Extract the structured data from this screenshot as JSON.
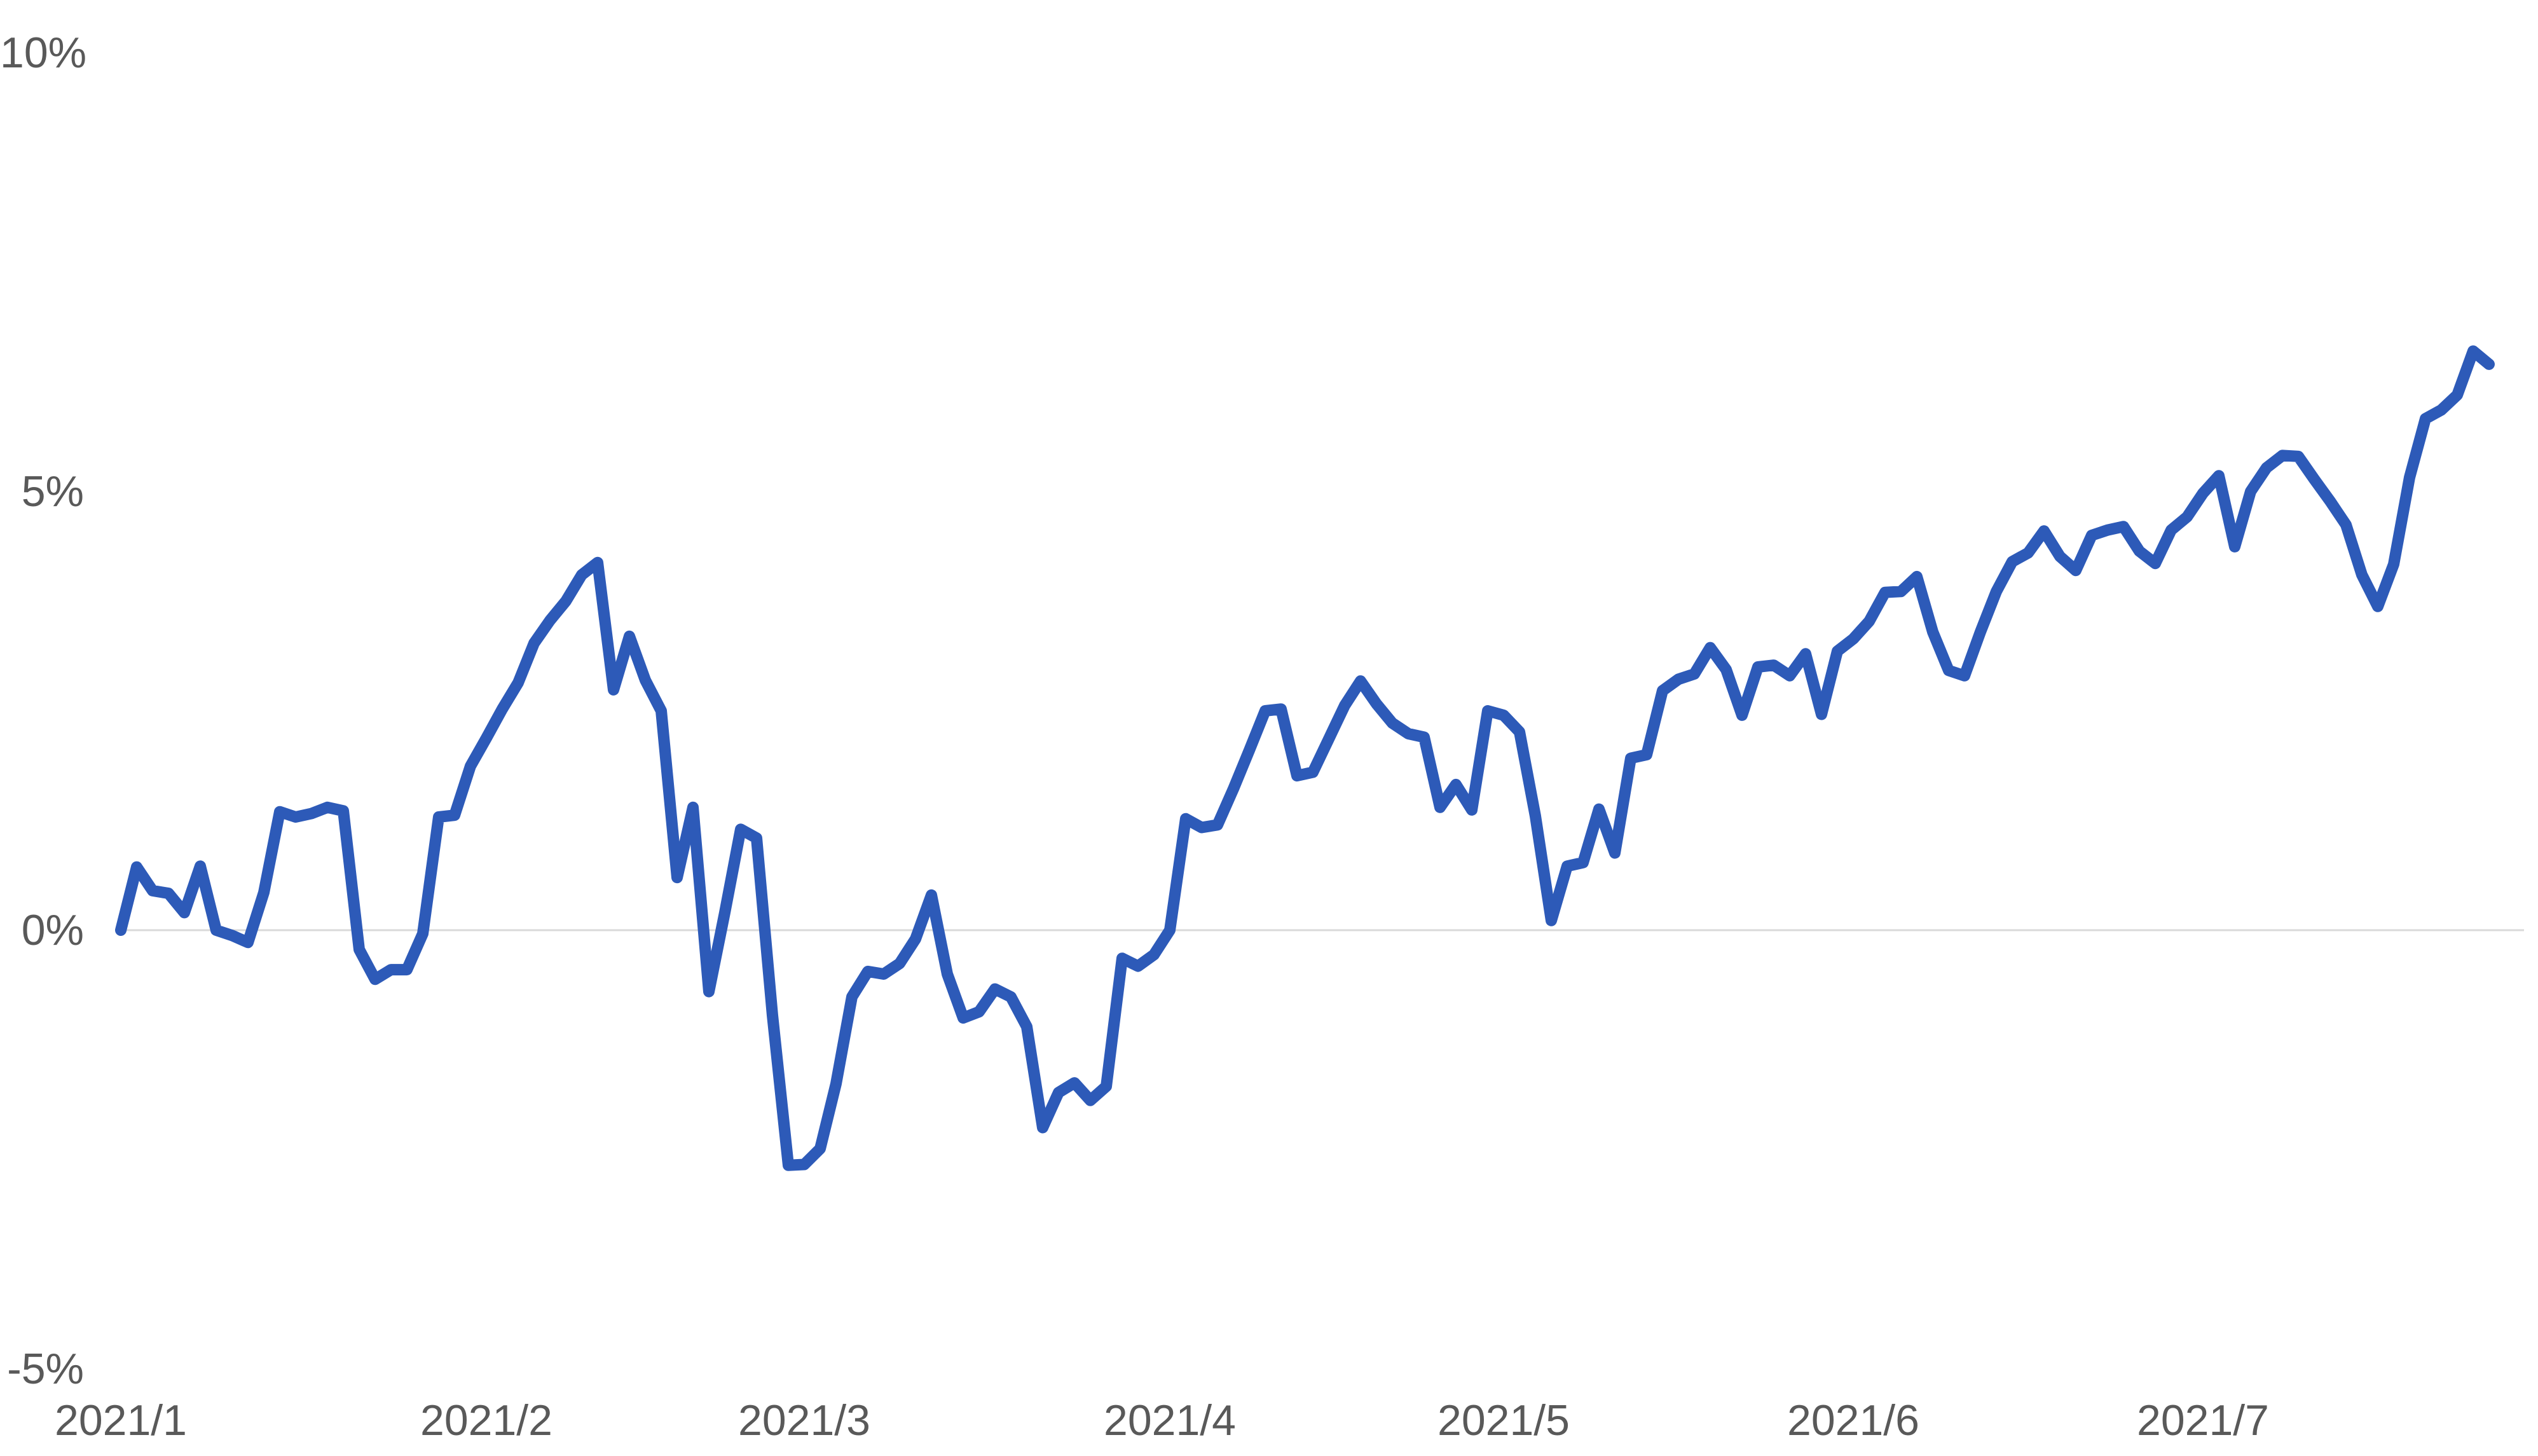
{
  "chart_data": {
    "type": "line",
    "title": "",
    "legend": "none",
    "x_axis": {
      "unit": "trading-day",
      "ticks": [
        {
          "label": "2021/1",
          "day": 1
        },
        {
          "label": "2021/2",
          "day": 24
        },
        {
          "label": "2021/3",
          "day": 44
        },
        {
          "label": "2021/4",
          "day": 67
        },
        {
          "label": "2021/5",
          "day": 88
        },
        {
          "label": "2021/6",
          "day": 110
        },
        {
          "label": "2021/7",
          "day": 132
        }
      ]
    },
    "y_axis": {
      "format": "percent",
      "min": -5,
      "max": 10,
      "ticks": [
        {
          "label": "10%",
          "value": 10
        },
        {
          "label": "5%",
          "value": 5
        },
        {
          "label": "0%",
          "value": 0
        },
        {
          "label": "-5%",
          "value": -5
        }
      ]
    },
    "grid": {
      "zero_line_only": true,
      "color": "#d9d9d9"
    },
    "series": [
      {
        "name": "series1",
        "color": "#2d5ab8",
        "values": [
          0.0,
          0.72,
          0.45,
          0.42,
          0.2,
          0.73,
          0.0,
          -0.06,
          -0.14,
          0.43,
          1.35,
          1.29,
          1.33,
          1.4,
          1.36,
          -0.22,
          -0.56,
          -0.45,
          -0.45,
          -0.04,
          1.29,
          1.31,
          1.87,
          2.19,
          2.52,
          2.82,
          3.27,
          3.53,
          3.75,
          4.05,
          4.19,
          2.74,
          3.35,
          2.85,
          2.5,
          0.6,
          1.4,
          -0.7,
          0.2,
          1.15,
          1.05,
          -0.97,
          -2.68,
          -2.67,
          -2.49,
          -1.75,
          -0.76,
          -0.47,
          -0.5,
          -0.38,
          -0.1,
          0.4,
          -0.5,
          -1.0,
          -0.93,
          -0.67,
          -0.76,
          -1.1,
          -2.25,
          -1.85,
          -1.74,
          -1.94,
          -1.78,
          -0.32,
          -0.41,
          -0.28,
          0.0,
          1.27,
          1.17,
          1.2,
          1.61,
          2.05,
          2.5,
          2.52,
          1.76,
          1.8,
          2.18,
          2.56,
          2.84,
          2.58,
          2.36,
          2.24,
          2.2,
          1.4,
          1.66,
          1.37,
          2.5,
          2.45,
          2.26,
          1.3,
          0.11,
          0.73,
          0.77,
          1.38,
          0.88,
          1.96,
          2.0,
          2.73,
          2.86,
          2.92,
          3.22,
          2.97,
          2.45,
          3.0,
          3.02,
          2.9,
          3.15,
          2.46,
          3.18,
          3.32,
          3.52,
          3.85,
          3.86,
          4.03,
          3.4,
          2.96,
          2.9,
          3.4,
          3.86,
          4.2,
          4.3,
          4.55,
          4.26,
          4.1,
          4.5,
          4.56,
          4.6,
          4.32,
          4.18,
          4.56,
          4.71,
          4.98,
          5.18,
          4.37,
          5.0,
          5.27,
          5.41,
          5.4,
          5.14,
          4.89,
          4.62,
          4.05,
          3.69,
          4.17,
          5.16,
          5.83,
          5.93,
          6.1,
          6.6,
          6.45
        ]
      }
    ]
  },
  "style": {
    "label_color": "#595959",
    "grid_color": "#d9d9d9",
    "background": "#ffffff"
  }
}
